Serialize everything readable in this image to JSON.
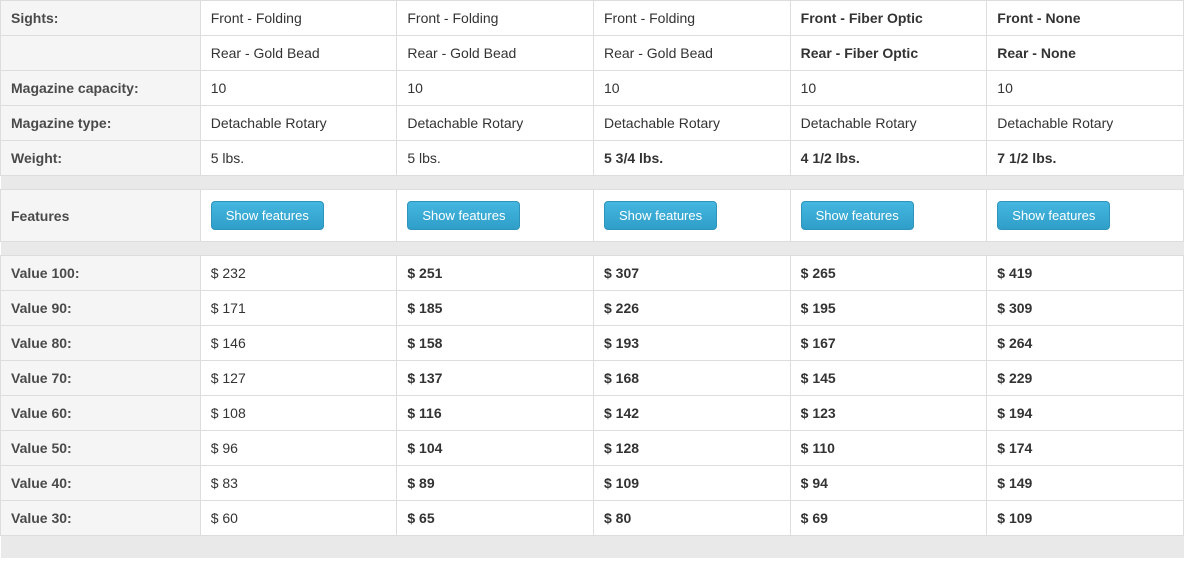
{
  "labels": {
    "sights": "Sights:",
    "magazine_capacity": "Magazine capacity:",
    "magazine_type": "Magazine type:",
    "weight": "Weight:",
    "features": "Features",
    "v100": "Value 100:",
    "v90": "Value 90:",
    "v80": "Value 80:",
    "v70": "Value 70:",
    "v60": "Value 60:",
    "v50": "Value 50:",
    "v40": "Value 40:",
    "v30": "Value 30:"
  },
  "button_label": "Show features",
  "cols": [
    {
      "sight_front": "Front - Folding",
      "sight_rear": "Rear - Gold Bead",
      "mag_capacity": "10",
      "mag_type": "Detachable Rotary",
      "weight": "5 lbs.",
      "bold": {
        "sight_front": false,
        "sight_rear": false,
        "weight": false
      },
      "v100": "$ 232",
      "v90": "$ 171",
      "v80": "$ 146",
      "v70": "$ 127",
      "v60": "$ 108",
      "v50": "$ 96",
      "v40": "$ 83",
      "v30": "$ 60",
      "vbold": false
    },
    {
      "sight_front": "Front - Folding",
      "sight_rear": "Rear - Gold Bead",
      "mag_capacity": "10",
      "mag_type": "Detachable Rotary",
      "weight": "5 lbs.",
      "bold": {
        "sight_front": false,
        "sight_rear": false,
        "weight": false
      },
      "v100": "$ 251",
      "v90": "$ 185",
      "v80": "$ 158",
      "v70": "$ 137",
      "v60": "$ 116",
      "v50": "$ 104",
      "v40": "$ 89",
      "v30": "$ 65",
      "vbold": true
    },
    {
      "sight_front": "Front - Folding",
      "sight_rear": "Rear - Gold Bead",
      "mag_capacity": "10",
      "mag_type": "Detachable Rotary",
      "weight": "5 3/4 lbs.",
      "bold": {
        "sight_front": false,
        "sight_rear": false,
        "weight": true
      },
      "v100": "$ 307",
      "v90": "$ 226",
      "v80": "$ 193",
      "v70": "$ 168",
      "v60": "$ 142",
      "v50": "$ 128",
      "v40": "$ 109",
      "v30": "$ 80",
      "vbold": true
    },
    {
      "sight_front": "Front - Fiber Optic",
      "sight_rear": "Rear - Fiber Optic",
      "mag_capacity": "10",
      "mag_type": "Detachable Rotary",
      "weight": "4 1/2 lbs.",
      "bold": {
        "sight_front": true,
        "sight_rear": true,
        "weight": true
      },
      "v100": "$ 265",
      "v90": "$ 195",
      "v80": "$ 167",
      "v70": "$ 145",
      "v60": "$ 123",
      "v50": "$ 110",
      "v40": "$ 94",
      "v30": "$ 69",
      "vbold": true
    },
    {
      "sight_front": "Front - None",
      "sight_rear": "Rear - None",
      "mag_capacity": "10",
      "mag_type": "Detachable Rotary",
      "weight": "7 1/2 lbs.",
      "bold": {
        "sight_front": true,
        "sight_rear": true,
        "weight": true
      },
      "v100": "$ 419",
      "v90": "$ 309",
      "v80": "$ 264",
      "v70": "$ 229",
      "v60": "$ 194",
      "v50": "$ 174",
      "v40": "$ 149",
      "v30": "$ 109",
      "vbold": true
    }
  ]
}
